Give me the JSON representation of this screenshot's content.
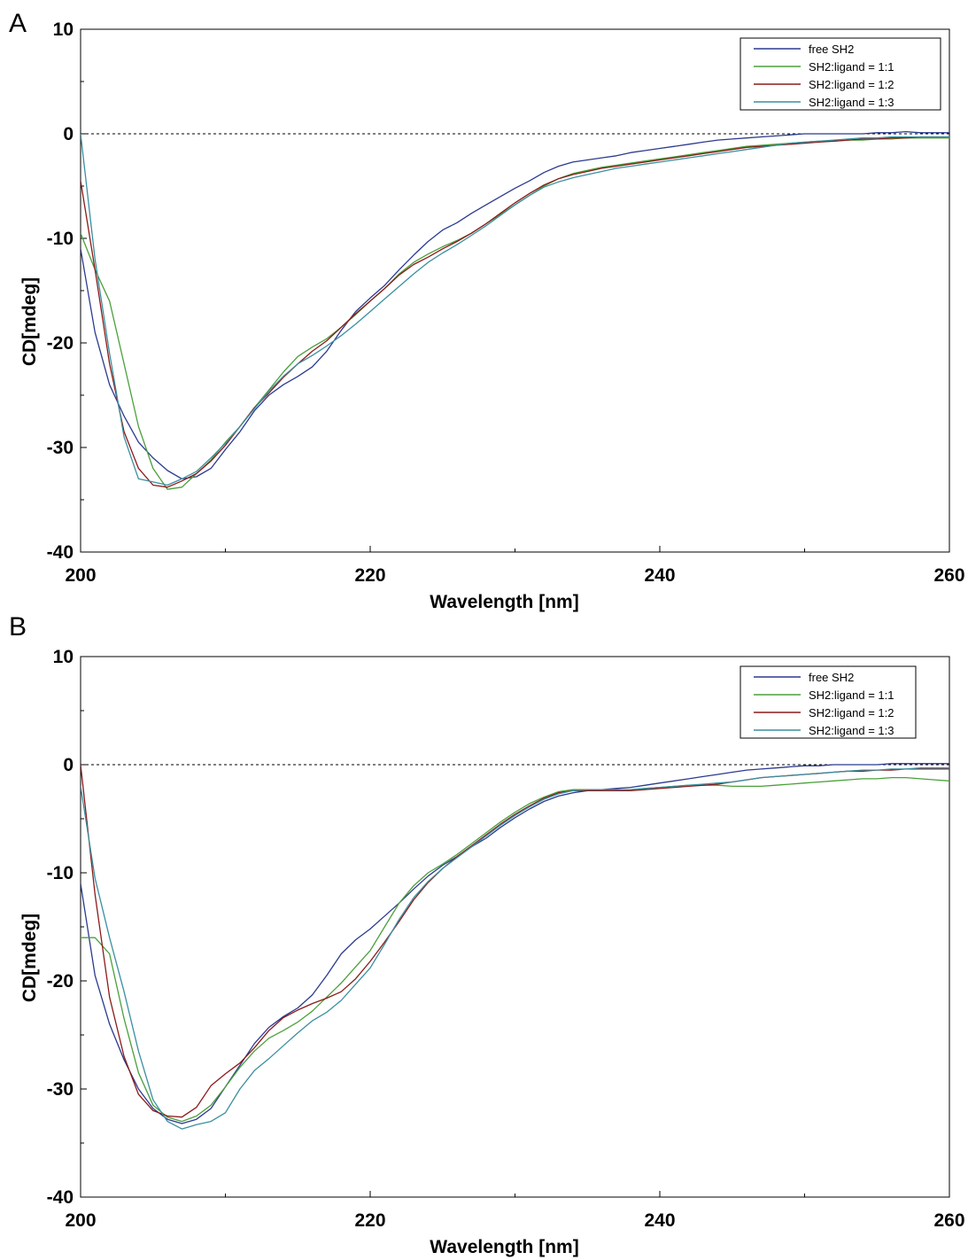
{
  "chart_data": [
    {
      "panel_label": "A",
      "type": "line",
      "title": "",
      "xlabel": "Wavelength [nm]",
      "ylabel": "CD[mdeg]",
      "xlim": [
        200,
        260
      ],
      "ylim": [
        -40,
        10
      ],
      "xticks": [
        200,
        220,
        240,
        260
      ],
      "yticks": [
        10,
        0,
        -10,
        -20,
        -30,
        -40
      ],
      "zero_line": "dashed",
      "grid": false,
      "legend_position": "top-right",
      "series": [
        {
          "name": "free SH2",
          "color": "#2b3a8f",
          "x": [
            200,
            201,
            202,
            203,
            204,
            205,
            206,
            207,
            208,
            209,
            210,
            211,
            212,
            213,
            214,
            215,
            216,
            217,
            218,
            219,
            220,
            221,
            222,
            223,
            224,
            225,
            226,
            227,
            228,
            229,
            230,
            231,
            232,
            233,
            234,
            235,
            236,
            237,
            238,
            239,
            240,
            241,
            242,
            243,
            244,
            245,
            246,
            247,
            248,
            249,
            250,
            251,
            252,
            253,
            254,
            255,
            256,
            257,
            258,
            259,
            260
          ],
          "y": [
            -11,
            -19,
            -24,
            -27,
            -29.5,
            -31,
            -32.2,
            -33,
            -32.8,
            -32,
            -30.2,
            -28.5,
            -26.5,
            -25,
            -24,
            -23.2,
            -22.3,
            -20.8,
            -18.8,
            -17,
            -15.7,
            -14.5,
            -13,
            -11.6,
            -10.3,
            -9.2,
            -8.5,
            -7.6,
            -6.8,
            -6,
            -5.2,
            -4.5,
            -3.7,
            -3.1,
            -2.7,
            -2.5,
            -2.3,
            -2.1,
            -1.8,
            -1.6,
            -1.4,
            -1.2,
            -1.0,
            -0.8,
            -0.6,
            -0.5,
            -0.4,
            -0.3,
            -0.2,
            -0.1,
            0,
            0,
            0,
            0,
            0,
            0.1,
            0.1,
            0.2,
            0.1,
            0.1,
            0.1
          ]
        },
        {
          "name": "SH2:ligand = 1:1",
          "color": "#4aa03a",
          "x": [
            200,
            201,
            202,
            203,
            204,
            205,
            206,
            207,
            208,
            209,
            210,
            211,
            212,
            213,
            214,
            215,
            216,
            217,
            218,
            219,
            220,
            221,
            222,
            223,
            224,
            225,
            226,
            227,
            228,
            229,
            230,
            231,
            232,
            233,
            234,
            235,
            236,
            237,
            238,
            239,
            240,
            241,
            242,
            243,
            244,
            245,
            246,
            247,
            248,
            249,
            250,
            251,
            252,
            253,
            254,
            255,
            256,
            257,
            258,
            259,
            260
          ],
          "y": [
            -9.5,
            -13,
            -16,
            -22,
            -28,
            -32,
            -34,
            -33.8,
            -32.5,
            -31.2,
            -29.5,
            -28,
            -26.2,
            -24.5,
            -22.8,
            -21.3,
            -20.4,
            -19.6,
            -18.5,
            -17.3,
            -16,
            -14.8,
            -13.4,
            -12.3,
            -11.5,
            -10.8,
            -10.2,
            -9.5,
            -8.6,
            -7.7,
            -6.8,
            -5.9,
            -5,
            -4.3,
            -3.8,
            -3.5,
            -3.2,
            -3,
            -2.8,
            -2.6,
            -2.4,
            -2.2,
            -2.0,
            -1.8,
            -1.6,
            -1.4,
            -1.2,
            -1.1,
            -1.0,
            -0.9,
            -0.8,
            -0.7,
            -0.7,
            -0.6,
            -0.6,
            -0.5,
            -0.5,
            -0.4,
            -0.4,
            -0.4,
            -0.4
          ]
        },
        {
          "name": "SH2:ligand = 1:2",
          "color": "#8b1a1a",
          "x": [
            200,
            201,
            202,
            203,
            204,
            205,
            206,
            207,
            208,
            209,
            210,
            211,
            212,
            213,
            214,
            215,
            216,
            217,
            218,
            219,
            220,
            221,
            222,
            223,
            224,
            225,
            226,
            227,
            228,
            229,
            230,
            231,
            232,
            233,
            234,
            235,
            236,
            237,
            238,
            239,
            240,
            241,
            242,
            243,
            244,
            245,
            246,
            247,
            248,
            249,
            250,
            251,
            252,
            253,
            254,
            255,
            256,
            257,
            258,
            259,
            260
          ],
          "y": [
            -4.5,
            -13,
            -22,
            -28.5,
            -32,
            -33.6,
            -33.8,
            -33.2,
            -32.5,
            -31.3,
            -29.8,
            -28,
            -26.2,
            -24.8,
            -23.3,
            -22,
            -20.8,
            -19.8,
            -18.5,
            -17.2,
            -16,
            -14.8,
            -13.5,
            -12.5,
            -11.8,
            -11,
            -10.3,
            -9.5,
            -8.6,
            -7.6,
            -6.6,
            -5.7,
            -4.9,
            -4.3,
            -3.9,
            -3.6,
            -3.3,
            -3.1,
            -2.9,
            -2.7,
            -2.5,
            -2.3,
            -2.1,
            -1.9,
            -1.7,
            -1.5,
            -1.3,
            -1.2,
            -1.1,
            -1.0,
            -0.9,
            -0.8,
            -0.7,
            -0.6,
            -0.5,
            -0.5,
            -0.4,
            -0.4,
            -0.3,
            -0.3,
            -0.3
          ]
        },
        {
          "name": "SH2:ligand = 1:3",
          "color": "#3a8fa0",
          "x": [
            200,
            201,
            202,
            203,
            204,
            205,
            206,
            207,
            208,
            209,
            210,
            211,
            212,
            213,
            214,
            215,
            216,
            217,
            218,
            219,
            220,
            221,
            222,
            223,
            224,
            225,
            226,
            227,
            228,
            229,
            230,
            231,
            232,
            233,
            234,
            235,
            236,
            237,
            238,
            239,
            240,
            241,
            242,
            243,
            244,
            245,
            246,
            247,
            248,
            249,
            250,
            251,
            252,
            253,
            254,
            255,
            256,
            257,
            258,
            259,
            260
          ],
          "y": [
            0,
            -12,
            -21,
            -29,
            -33,
            -33.3,
            -33.6,
            -33,
            -32.3,
            -31,
            -29.6,
            -28,
            -26.3,
            -24.6,
            -23.2,
            -22,
            -21.2,
            -20.3,
            -19.3,
            -18.2,
            -17,
            -15.8,
            -14.6,
            -13.4,
            -12.3,
            -11.4,
            -10.6,
            -9.7,
            -8.8,
            -7.8,
            -6.8,
            -5.9,
            -5.1,
            -4.6,
            -4.2,
            -3.9,
            -3.6,
            -3.3,
            -3.1,
            -2.9,
            -2.7,
            -2.5,
            -2.3,
            -2.1,
            -1.9,
            -1.7,
            -1.5,
            -1.3,
            -1.1,
            -0.9,
            -0.8,
            -0.7,
            -0.6,
            -0.5,
            -0.4,
            -0.4,
            -0.3,
            -0.3,
            -0.3,
            -0.3,
            -0.3
          ]
        }
      ]
    },
    {
      "panel_label": "B",
      "type": "line",
      "title": "",
      "xlabel": "Wavelength [nm]",
      "ylabel": "CD[mdeg]",
      "xlim": [
        200,
        260
      ],
      "ylim": [
        -40,
        10
      ],
      "xticks": [
        200,
        220,
        240,
        260
      ],
      "yticks": [
        10,
        0,
        -10,
        -20,
        -30,
        -40
      ],
      "zero_line": "dashed",
      "grid": false,
      "legend_position": "top-right",
      "series": [
        {
          "name": "free SH2",
          "color": "#2b3a8f",
          "x": [
            200,
            201,
            202,
            203,
            204,
            205,
            206,
            207,
            208,
            209,
            210,
            211,
            212,
            213,
            214,
            215,
            216,
            217,
            218,
            219,
            220,
            221,
            222,
            223,
            224,
            225,
            226,
            227,
            228,
            229,
            230,
            231,
            232,
            233,
            234,
            235,
            236,
            237,
            238,
            239,
            240,
            241,
            242,
            243,
            244,
            245,
            246,
            247,
            248,
            249,
            250,
            251,
            252,
            253,
            254,
            255,
            256,
            257,
            258,
            259,
            260
          ],
          "y": [
            -11,
            -19.5,
            -24,
            -27.3,
            -30,
            -31.8,
            -32.8,
            -33.2,
            -32.8,
            -31.8,
            -29.8,
            -27.8,
            -25.8,
            -24.3,
            -23.3,
            -22.5,
            -21.3,
            -19.5,
            -17.5,
            -16.2,
            -15.2,
            -14,
            -12.8,
            -11.5,
            -10.3,
            -9.3,
            -8.5,
            -7.6,
            -6.8,
            -5.8,
            -4.9,
            -4.1,
            -3.4,
            -2.9,
            -2.6,
            -2.4,
            -2.3,
            -2.2,
            -2.1,
            -1.9,
            -1.7,
            -1.5,
            -1.3,
            -1.1,
            -0.9,
            -0.7,
            -0.5,
            -0.4,
            -0.3,
            -0.2,
            -0.1,
            -0.1,
            0,
            0,
            0,
            0,
            0.1,
            0.1,
            0.1,
            0.1,
            0.1
          ]
        },
        {
          "name": "SH2:ligand = 1:1",
          "color": "#4aa03a",
          "x": [
            200,
            201,
            202,
            203,
            204,
            205,
            206,
            207,
            208,
            209,
            210,
            211,
            212,
            213,
            214,
            215,
            216,
            217,
            218,
            219,
            220,
            221,
            222,
            223,
            224,
            225,
            226,
            227,
            228,
            229,
            230,
            231,
            232,
            233,
            234,
            235,
            236,
            237,
            238,
            239,
            240,
            241,
            242,
            243,
            244,
            245,
            246,
            247,
            248,
            249,
            250,
            251,
            252,
            253,
            254,
            255,
            256,
            257,
            258,
            259,
            260
          ],
          "y": [
            -16,
            -16,
            -17.5,
            -23.5,
            -28.5,
            -31.5,
            -32.6,
            -33,
            -32.5,
            -31.5,
            -29.8,
            -28,
            -26.5,
            -25.3,
            -24.6,
            -23.8,
            -22.8,
            -21.5,
            -20.2,
            -18.7,
            -17.2,
            -15,
            -12.8,
            -11.2,
            -10,
            -9.2,
            -8.3,
            -7.3,
            -6.3,
            -5.3,
            -4.4,
            -3.6,
            -3,
            -2.5,
            -2.3,
            -2.3,
            -2.3,
            -2.3,
            -2.3,
            -2.2,
            -2.1,
            -2,
            -1.9,
            -1.9,
            -1.9,
            -2,
            -2,
            -2,
            -1.9,
            -1.8,
            -1.7,
            -1.6,
            -1.5,
            -1.4,
            -1.3,
            -1.3,
            -1.2,
            -1.2,
            -1.3,
            -1.4,
            -1.5
          ]
        },
        {
          "name": "SH2:ligand = 1:2",
          "color": "#8b1a1a",
          "x": [
            200,
            201,
            202,
            203,
            204,
            205,
            206,
            207,
            208,
            209,
            210,
            211,
            212,
            213,
            214,
            215,
            216,
            217,
            218,
            219,
            220,
            221,
            222,
            223,
            224,
            225,
            226,
            227,
            228,
            229,
            230,
            231,
            232,
            233,
            234,
            235,
            236,
            237,
            238,
            239,
            240,
            241,
            242,
            243,
            244,
            245,
            246,
            247,
            248,
            249,
            250,
            251,
            252,
            253,
            254,
            255,
            256,
            257,
            258,
            259,
            260
          ],
          "y": [
            0,
            -12,
            -21.5,
            -27,
            -30.5,
            -32,
            -32.5,
            -32.6,
            -31.7,
            -29.7,
            -28.6,
            -27.6,
            -26.2,
            -24.6,
            -23.4,
            -22.7,
            -22.1,
            -21.6,
            -21,
            -19.8,
            -18.2,
            -16.4,
            -14.5,
            -12.5,
            -10.9,
            -9.6,
            -8.5,
            -7.5,
            -6.5,
            -5.5,
            -4.6,
            -3.8,
            -3.1,
            -2.6,
            -2.4,
            -2.4,
            -2.4,
            -2.4,
            -2.4,
            -2.3,
            -2.2,
            -2.1,
            -2,
            -1.9,
            -1.8,
            -1.6,
            -1.4,
            -1.2,
            -1.1,
            -1,
            -0.9,
            -0.8,
            -0.7,
            -0.6,
            -0.6,
            -0.5,
            -0.5,
            -0.4,
            -0.4,
            -0.4,
            -0.4
          ]
        },
        {
          "name": "SH2:ligand = 1:3",
          "color": "#3a8fa0",
          "x": [
            200,
            201,
            202,
            203,
            204,
            205,
            206,
            207,
            208,
            209,
            210,
            211,
            212,
            213,
            214,
            215,
            216,
            217,
            218,
            219,
            220,
            221,
            222,
            223,
            224,
            225,
            226,
            227,
            228,
            229,
            230,
            231,
            232,
            233,
            234,
            235,
            236,
            237,
            238,
            239,
            240,
            241,
            242,
            243,
            244,
            245,
            246,
            247,
            248,
            249,
            250,
            251,
            252,
            253,
            254,
            255,
            256,
            257,
            258,
            259,
            260
          ],
          "y": [
            -2,
            -10.5,
            -16,
            -21,
            -26.5,
            -31,
            -33,
            -33.7,
            -33.3,
            -33,
            -32.2,
            -30,
            -28.3,
            -27.2,
            -26,
            -24.8,
            -23.7,
            -22.9,
            -21.8,
            -20.3,
            -18.8,
            -16.6,
            -14.3,
            -12.3,
            -10.8,
            -9.6,
            -8.6,
            -7.6,
            -6.6,
            -5.6,
            -4.7,
            -3.9,
            -3.2,
            -2.7,
            -2.4,
            -2.3,
            -2.3,
            -2.3,
            -2.3,
            -2.2,
            -2.1,
            -2,
            -1.9,
            -1.8,
            -1.7,
            -1.6,
            -1.4,
            -1.2,
            -1.1,
            -1,
            -0.9,
            -0.8,
            -0.7,
            -0.6,
            -0.5,
            -0.5,
            -0.4,
            -0.4,
            -0.3,
            -0.3,
            -0.3
          ]
        }
      ]
    }
  ]
}
